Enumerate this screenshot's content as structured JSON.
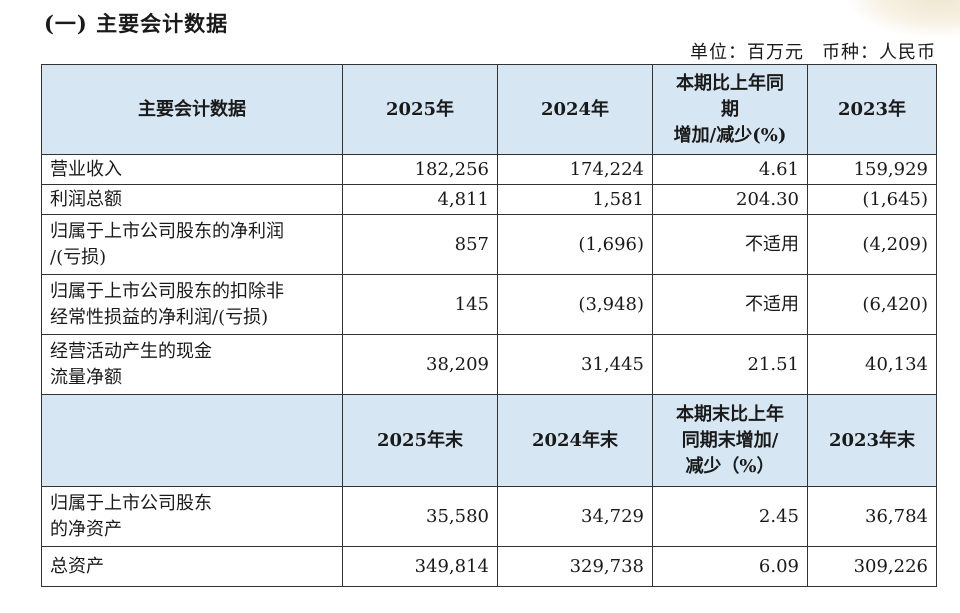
{
  "section_title": "(一) 主要会计数据",
  "unit": {
    "unit_text": "单位：百万元",
    "currency_text": "币种：人民币"
  },
  "header1": {
    "label": "主要会计数据",
    "y2025": "2025年",
    "y2024": "2024年",
    "change_line1": "本期比上年同",
    "change_line2": "期",
    "change_line3": "增加/减少(%)",
    "y2023": "2023年"
  },
  "rows1": [
    {
      "label_line1": "营业收入",
      "label_line2": "",
      "v2025": "182,256",
      "v2024": "174,224",
      "change": "4.61",
      "v2023": "159,929"
    },
    {
      "label_line1": "利润总额",
      "label_line2": "",
      "v2025": "4,811",
      "v2024": "1,581",
      "change": "204.30",
      "v2023": "(1,645)"
    },
    {
      "label_line1": "归属于上市公司股东的净利润",
      "label_line2": "/(亏损)",
      "v2025": "857",
      "v2024": "(1,696)",
      "change": "不适用",
      "v2023": "(4,209)"
    },
    {
      "label_line1": "归属于上市公司股东的扣除非",
      "label_line2": "经常性损益的净利润/(亏损)",
      "v2025": "145",
      "v2024": "(3,948)",
      "change": "不适用",
      "v2023": "(6,420)"
    },
    {
      "label_line1": "经营活动产生的现金",
      "label_line2": "流量净额",
      "v2025": "38,209",
      "v2024": "31,445",
      "change": "21.51",
      "v2023": "40,134"
    }
  ],
  "header2": {
    "label": "",
    "y2025": "2025年末",
    "y2024": "2024年末",
    "change_line1": "本期末比上年",
    "change_line2": "同期末增加/",
    "change_line3": "减少（%）",
    "y2023": "2023年末"
  },
  "rows2": [
    {
      "label_line1": "归属于上市公司股东",
      "label_line2": "的净资产",
      "v2025": "35,580",
      "v2024": "34,729",
      "change": "2.45",
      "v2023": "36,784"
    },
    {
      "label_line1": "总资产",
      "label_line2": "",
      "v2025": "349,814",
      "v2024": "329,738",
      "change": "6.09",
      "v2023": "309,226"
    }
  ],
  "colors": {
    "header_bg": "#d6e7f3",
    "border": "#333333"
  }
}
